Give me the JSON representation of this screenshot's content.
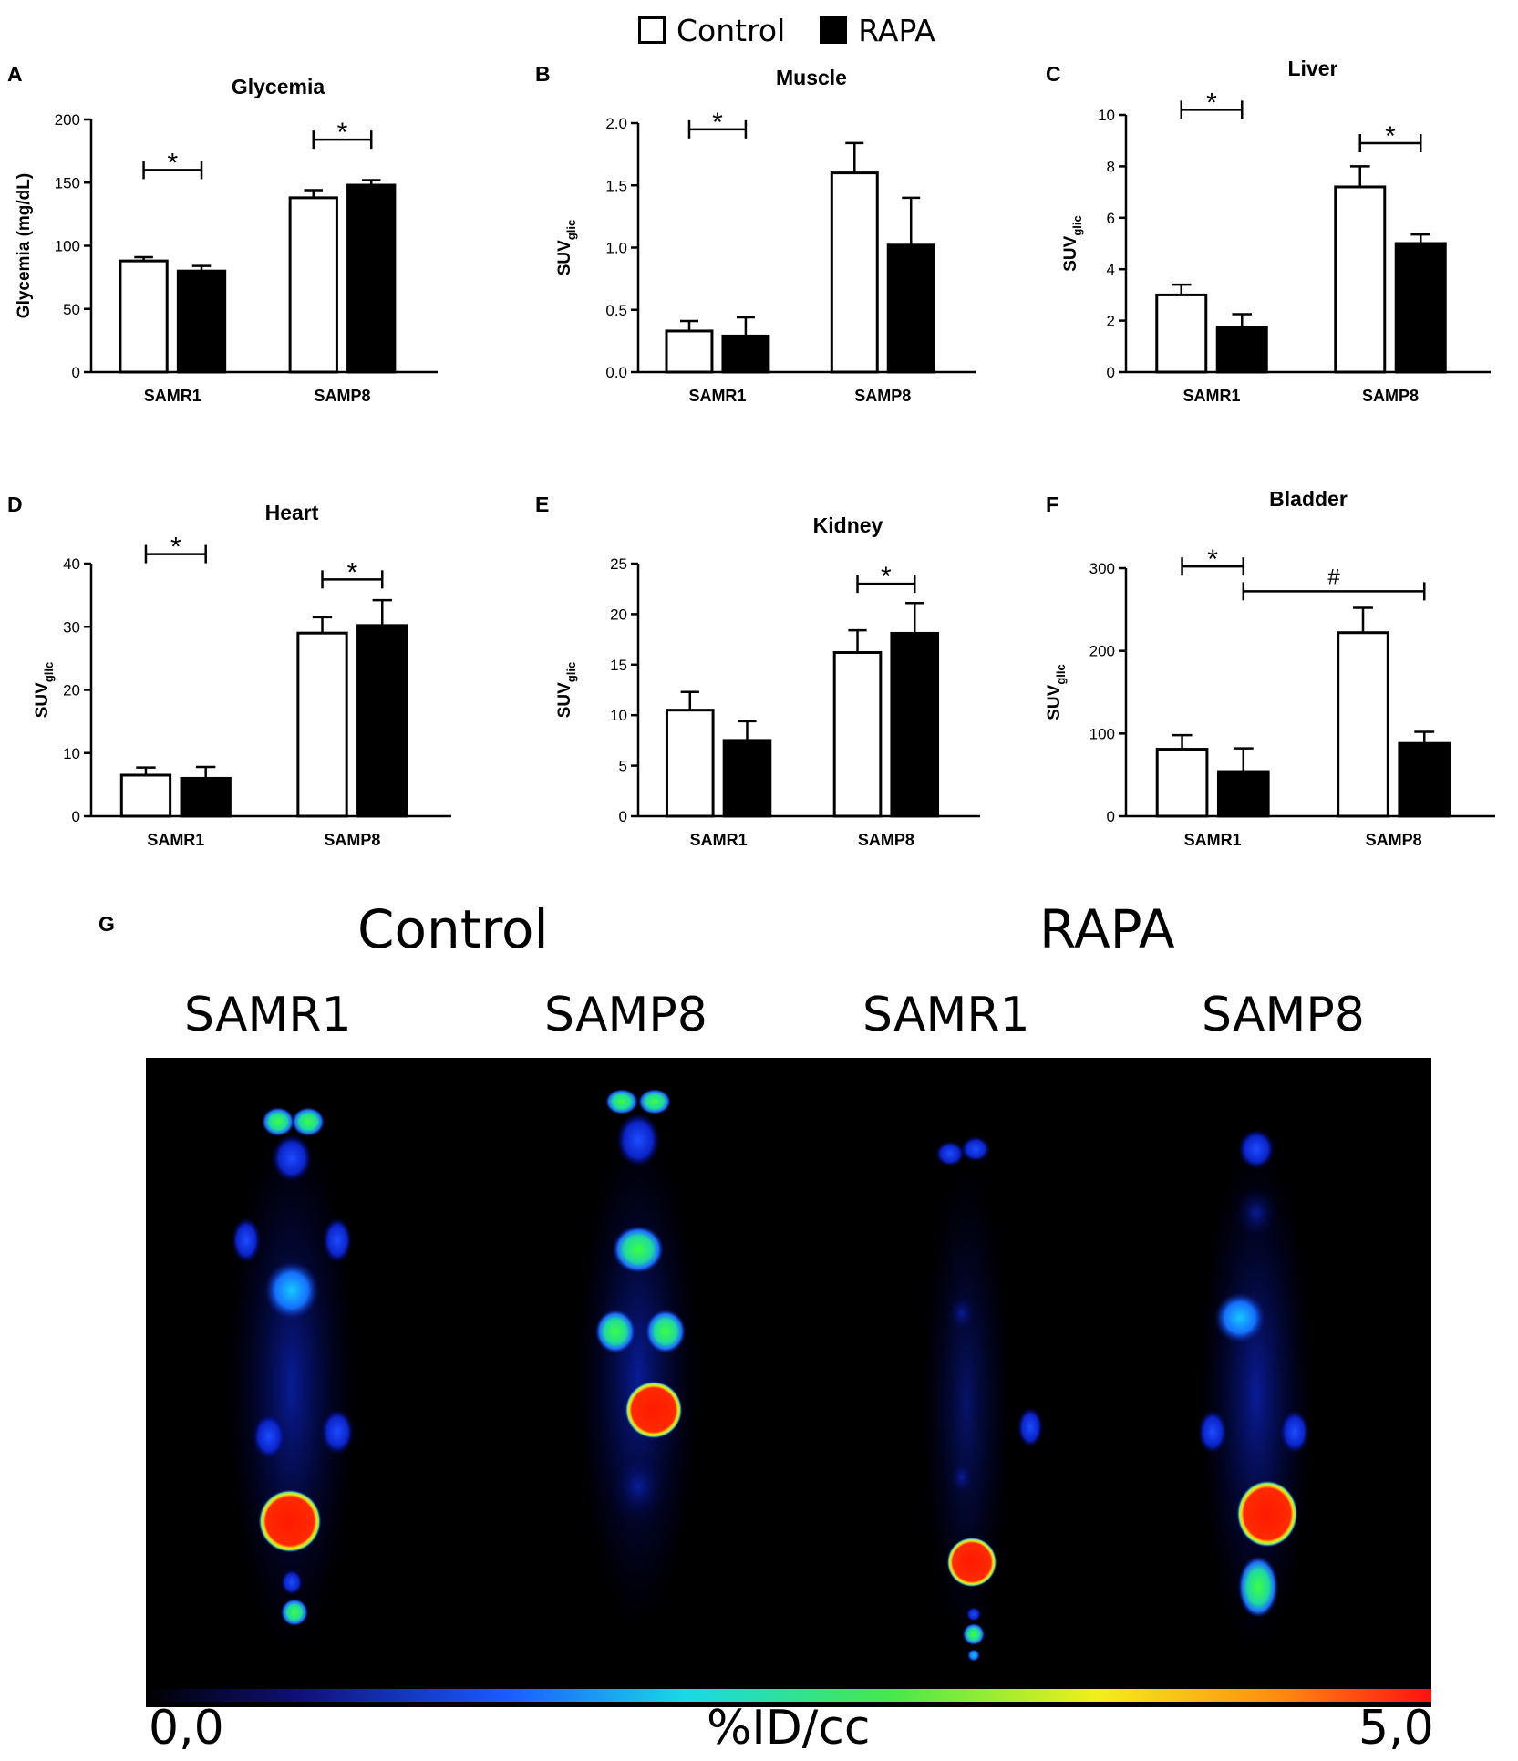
{
  "legend": {
    "entries": [
      {
        "label": "Control",
        "color": "#ffffff"
      },
      {
        "label": "RAPA",
        "color": "#000000"
      }
    ]
  },
  "chart_data": [
    {
      "panel": "A",
      "type": "bar",
      "title": "Glycemia",
      "ylabel": "Glycemia (mg/dL)",
      "ylim": [
        0,
        200
      ],
      "yticks": [
        0,
        50,
        100,
        150,
        200
      ],
      "categories": [
        "SAMR1",
        "SAMP8"
      ],
      "series": [
        {
          "name": "Control",
          "values": [
            88,
            138
          ],
          "errors": [
            3,
            6
          ]
        },
        {
          "name": "RAPA",
          "values": [
            80,
            148
          ],
          "errors": [
            4,
            4
          ]
        }
      ],
      "annotations": [
        {
          "label": "*",
          "from": [
            0,
            0
          ],
          "to": [
            1,
            0
          ],
          "y": 160
        },
        {
          "label": "*",
          "from": [
            0,
            1
          ],
          "to": [
            1,
            1
          ],
          "y": 184
        }
      ]
    },
    {
      "panel": "B",
      "type": "bar",
      "title": "Muscle",
      "ylabel": "SUVglic",
      "ylim": [
        0,
        2.0
      ],
      "yticks": [
        0.0,
        0.5,
        1.0,
        1.5,
        2.0
      ],
      "ytick_decimals": 1,
      "categories": [
        "SAMR1",
        "SAMP8"
      ],
      "series": [
        {
          "name": "Control",
          "values": [
            0.33,
            1.6
          ],
          "errors": [
            0.08,
            0.24
          ]
        },
        {
          "name": "RAPA",
          "values": [
            0.29,
            1.02
          ],
          "errors": [
            0.15,
            0.38
          ]
        }
      ],
      "annotations": [
        {
          "label": "*",
          "from": [
            0,
            0
          ],
          "to": [
            1,
            0
          ],
          "y": 1.95
        }
      ]
    },
    {
      "panel": "C",
      "type": "bar",
      "title": "Liver",
      "ylabel": "SUVglic",
      "ylim": [
        0,
        10
      ],
      "yticks": [
        0,
        2,
        4,
        6,
        8,
        10
      ],
      "categories": [
        "SAMR1",
        "SAMP8"
      ],
      "series": [
        {
          "name": "Control",
          "values": [
            3.0,
            7.2
          ],
          "errors": [
            0.4,
            0.8
          ]
        },
        {
          "name": "RAPA",
          "values": [
            1.75,
            5.0
          ],
          "errors": [
            0.5,
            0.35
          ]
        }
      ],
      "annotations": [
        {
          "label": "*",
          "from": [
            0,
            0
          ],
          "to": [
            1,
            0
          ],
          "y": 10.2
        },
        {
          "label": "*",
          "from": [
            0,
            1
          ],
          "to": [
            1,
            1
          ],
          "y": 8.9
        }
      ]
    },
    {
      "panel": "D",
      "type": "bar",
      "title": "Heart",
      "ylabel": "SUVglic",
      "ylim": [
        0,
        40
      ],
      "yticks": [
        0,
        10,
        20,
        30,
        40
      ],
      "categories": [
        "SAMR1",
        "SAMP8"
      ],
      "series": [
        {
          "name": "Control",
          "values": [
            6.5,
            29.0
          ],
          "errors": [
            1.2,
            2.5
          ]
        },
        {
          "name": "RAPA",
          "values": [
            6.0,
            30.2
          ],
          "errors": [
            1.8,
            4.0
          ]
        }
      ],
      "annotations": [
        {
          "label": "*",
          "from": [
            0,
            0
          ],
          "to": [
            1,
            0
          ],
          "y": 41.5
        },
        {
          "label": "*",
          "from": [
            0,
            1
          ],
          "to": [
            1,
            1
          ],
          "y": 37.5
        }
      ]
    },
    {
      "panel": "E",
      "type": "bar",
      "title": "Kidney",
      "ylabel": "SUVglic",
      "ylim": [
        0,
        25
      ],
      "yticks": [
        0,
        5,
        10,
        15,
        20,
        25
      ],
      "categories": [
        "SAMR1",
        "SAMP8"
      ],
      "series": [
        {
          "name": "Control",
          "values": [
            10.5,
            16.2
          ],
          "errors": [
            1.8,
            2.2
          ]
        },
        {
          "name": "RAPA",
          "values": [
            7.5,
            18.1
          ],
          "errors": [
            1.9,
            3.0
          ]
        }
      ],
      "annotations": [
        {
          "label": "*",
          "from": [
            0,
            1
          ],
          "to": [
            1,
            1
          ],
          "y": 23.0
        }
      ]
    },
    {
      "panel": "F",
      "type": "bar",
      "title": "Bladder",
      "ylabel": "SUVglic",
      "ylim": [
        0,
        300
      ],
      "yticks": [
        0,
        100,
        200,
        300
      ],
      "categories": [
        "SAMR1",
        "SAMP8"
      ],
      "series": [
        {
          "name": "Control",
          "values": [
            81,
            222
          ],
          "errors": [
            17,
            30
          ]
        },
        {
          "name": "RAPA",
          "values": [
            54,
            88
          ],
          "errors": [
            28,
            14
          ]
        }
      ],
      "annotations": [
        {
          "label": "*",
          "from": [
            0,
            0
          ],
          "to": [
            1,
            0
          ],
          "y": 302
        },
        {
          "label": "#",
          "from": [
            1,
            0
          ],
          "to": [
            1,
            1
          ],
          "y": 272
        }
      ]
    }
  ],
  "pet": {
    "panel": "G",
    "group_labels": [
      "Control",
      "RAPA"
    ],
    "column_labels": [
      "SAMR1",
      "SAMP8",
      "SAMR1",
      "SAMP8"
    ],
    "colorbar_min": "0,0",
    "colorbar_unit": "%ID/cc",
    "colorbar_max": "5,0"
  }
}
